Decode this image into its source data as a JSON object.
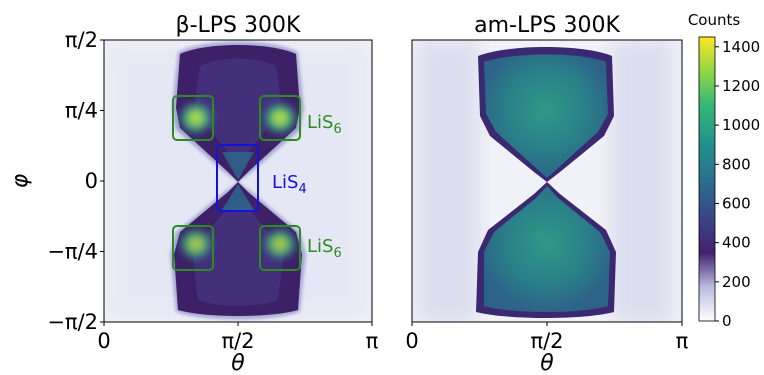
{
  "chart_data": [
    {
      "type": "heatmap",
      "title": "β-LPS 300K",
      "xlabel": "θ",
      "ylabel": "φ",
      "x_ticks": [
        "0",
        "π/2",
        "π"
      ],
      "y_ticks": [
        "π/2",
        "π/4",
        "0",
        "−π/4",
        "−π/2"
      ],
      "x_range": [
        "0",
        "π"
      ],
      "y_range": [
        "−π/2",
        "π/2"
      ],
      "density_shape": "bowtie pinched at (θ=π/2, φ=0)",
      "hotspots": [
        {
          "theta": "≈0.34π",
          "phi": "≈π/4",
          "counts": 1400
        },
        {
          "theta": "≈0.66π",
          "phi": "≈π/4",
          "counts": 1400
        },
        {
          "theta": "≈0.34π",
          "phi": "≈−π/4",
          "counts": 1300
        },
        {
          "theta": "≈0.66π",
          "phi": "≈−π/4",
          "counts": 1300
        }
      ],
      "annotations": [
        {
          "label": "LiS6",
          "color": "#2e8a22",
          "region": "upper pair (φ≈π/4)"
        },
        {
          "label": "LiS4",
          "color": "#1212d8",
          "region": "center (θ≈π/2, φ≈0)"
        },
        {
          "label": "LiS6",
          "color": "#2e8a22",
          "region": "lower pair (φ≈−π/4)"
        }
      ]
    },
    {
      "type": "heatmap",
      "title": "am-LPS 300K",
      "xlabel": "θ",
      "x_ticks": [
        "0",
        "π/2",
        "π"
      ],
      "x_range": [
        "0",
        "π"
      ],
      "y_range": [
        "−π/2",
        "π/2"
      ],
      "density_shape": "smooth bowtie pinched at (θ=π/2, φ=0)",
      "typical_counts": 600
    }
  ],
  "colorbar": {
    "title": "Counts",
    "ticks": [
      "0",
      "200",
      "400",
      "600",
      "800",
      "1000",
      "1200",
      "1400"
    ],
    "min": 0,
    "max": 1450,
    "colormap": "viridis_r-like (white → purple → teal → yellow)"
  }
}
